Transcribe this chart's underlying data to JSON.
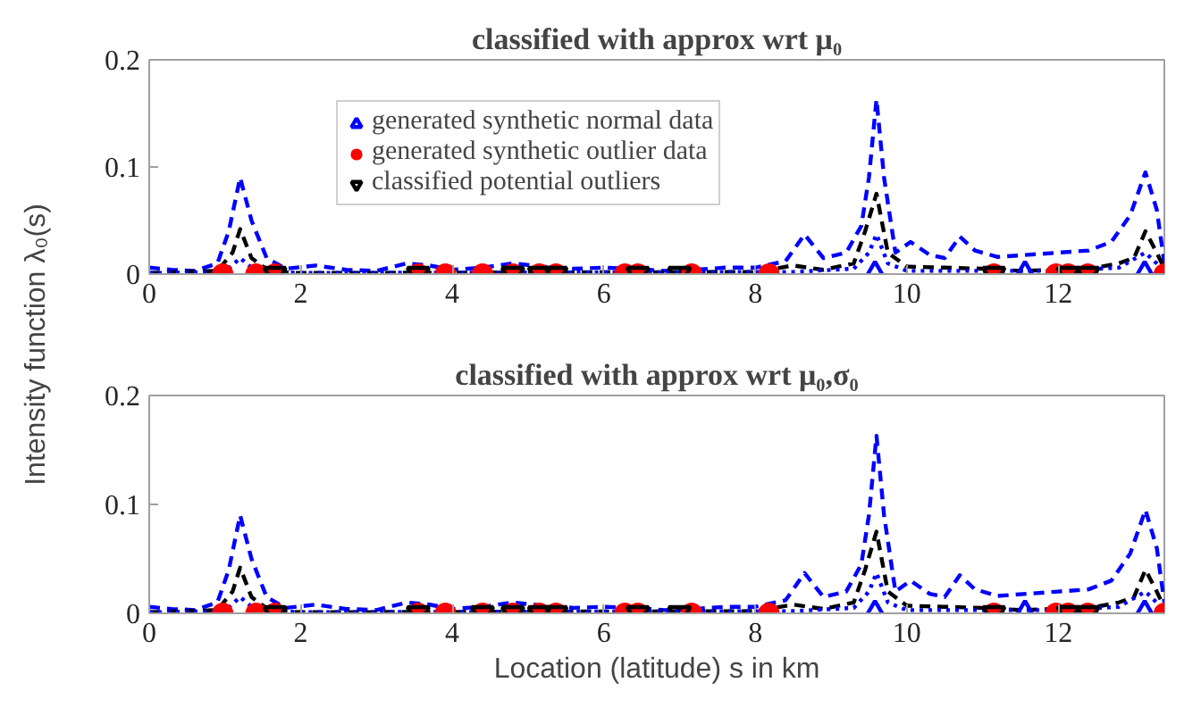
{
  "chart_data": [
    {
      "type": "line",
      "title": "classified with approx wrt μ₀",
      "ylabel": "Intensity function λ₀(s)",
      "xlim": [
        0,
        13.4
      ],
      "xticks": [
        0,
        2,
        4,
        6,
        8,
        10,
        12
      ],
      "ylim": [
        0,
        0.2
      ],
      "yticks": [
        0,
        0.1,
        0.2
      ],
      "grid": false,
      "legend": "top left",
      "series": [
        {
          "line_style": "dashed",
          "color": "#0000ff",
          "x": [
            0,
            0.3,
            0.6,
            0.9,
            1.05,
            1.2,
            1.35,
            1.55,
            1.8,
            2.2,
            2.6,
            3.0,
            3.4,
            3.7,
            4.0,
            4.4,
            4.8,
            5.2,
            5.6,
            6.0,
            6.4,
            6.8,
            7.2,
            7.6,
            8.0,
            8.4,
            8.65,
            8.9,
            9.2,
            9.4,
            9.5,
            9.6,
            9.7,
            9.85,
            10.05,
            10.3,
            10.5,
            10.7,
            10.9,
            11.2,
            11.6,
            12.0,
            12.4,
            12.7,
            12.95,
            13.15,
            13.3,
            13.4
          ],
          "values": [
            0.006,
            0.004,
            0.003,
            0.01,
            0.04,
            0.09,
            0.05,
            0.015,
            0.005,
            0.008,
            0.004,
            0.003,
            0.01,
            0.008,
            0.004,
            0.006,
            0.01,
            0.007,
            0.005,
            0.006,
            0.005,
            0.003,
            0.004,
            0.006,
            0.006,
            0.012,
            0.037,
            0.015,
            0.02,
            0.045,
            0.09,
            0.163,
            0.09,
            0.02,
            0.03,
            0.018,
            0.015,
            0.035,
            0.022,
            0.016,
            0.018,
            0.02,
            0.022,
            0.03,
            0.055,
            0.095,
            0.06,
            0.01
          ]
        },
        {
          "line_style": "dashed",
          "color": "#000000",
          "x": [
            0,
            0.9,
            1.1,
            1.2,
            1.35,
            1.6,
            2.0,
            8.0,
            8.5,
            8.9,
            9.3,
            9.45,
            9.6,
            9.75,
            10.0,
            10.5,
            11.0,
            11.5,
            12.0,
            12.5,
            12.8,
            13.0,
            13.15,
            13.3,
            13.4
          ],
          "values": [
            0.001,
            0.003,
            0.02,
            0.042,
            0.015,
            0.002,
            0.001,
            0.002,
            0.008,
            0.004,
            0.01,
            0.04,
            0.075,
            0.02,
            0.007,
            0.006,
            0.005,
            0.003,
            0.004,
            0.006,
            0.01,
            0.015,
            0.04,
            0.02,
            0.005
          ]
        },
        {
          "line_style": "dotted",
          "color": "#0000ff",
          "x": [
            0,
            1.0,
            1.2,
            1.4,
            2.0,
            8.5,
            9.3,
            9.5,
            9.6,
            9.75,
            10.0,
            12.0,
            12.8,
            13.15,
            13.4
          ],
          "values": [
            0.001,
            0.002,
            0.015,
            0.003,
            0.001,
            0.002,
            0.005,
            0.02,
            0.037,
            0.01,
            0.003,
            0.003,
            0.006,
            0.02,
            0.003
          ]
        },
        {
          "type": "scatter",
          "marker": "triangle",
          "name": "generated synthetic normal data",
          "color": "#0000ff",
          "x": [
            9.58,
            11.56,
            13.14
          ],
          "values": [
            0,
            0,
            0
          ]
        },
        {
          "type": "scatter",
          "marker": "circle",
          "name": "generated synthetic outlier data",
          "color": "#ff0000",
          "x": [
            0.97,
            1.41,
            1.66,
            3.55,
            3.91,
            4.4,
            4.8,
            5.15,
            5.37,
            6.28,
            6.45,
            7.16,
            8.18,
            11.15,
            11.97,
            12.13,
            12.39,
            13.4
          ],
          "values": [
            0,
            0,
            0,
            0,
            0,
            0,
            0,
            0,
            0,
            0,
            0,
            0,
            0,
            0,
            0,
            0,
            0,
            0
          ]
        },
        {
          "type": "scatter",
          "marker": "triangle",
          "name": "classified potential outliers",
          "color": "#000000",
          "x": [
            1.66,
            3.55,
            4.8,
            5.15,
            5.37,
            6.45,
            7.0,
            11.15,
            12.13,
            12.39
          ],
          "values": [
            0,
            0,
            0,
            0,
            0,
            0,
            0,
            0,
            0,
            0
          ]
        }
      ]
    },
    {
      "type": "line",
      "title": "classified with approx wrt μ₀,σ₀",
      "xlabel": "Location (latitude) s in km",
      "xlim": [
        0,
        13.4
      ],
      "xticks": [
        0,
        2,
        4,
        6,
        8,
        10,
        12
      ],
      "ylim": [
        0,
        0.2
      ],
      "yticks": [
        0,
        0.1,
        0.2
      ],
      "grid": false,
      "series": [
        {
          "line_style": "dashed",
          "color": "#0000ff",
          "x": [
            0,
            0.3,
            0.6,
            0.9,
            1.05,
            1.2,
            1.35,
            1.55,
            1.8,
            2.2,
            2.6,
            3.0,
            3.4,
            3.7,
            4.0,
            4.4,
            4.8,
            5.2,
            5.6,
            6.0,
            6.4,
            6.8,
            7.2,
            7.6,
            8.0,
            8.4,
            8.65,
            8.9,
            9.2,
            9.4,
            9.5,
            9.6,
            9.7,
            9.85,
            10.05,
            10.3,
            10.5,
            10.7,
            10.9,
            11.2,
            11.6,
            12.0,
            12.4,
            12.7,
            12.95,
            13.15,
            13.3,
            13.4
          ],
          "values": [
            0.006,
            0.004,
            0.003,
            0.01,
            0.04,
            0.09,
            0.05,
            0.015,
            0.005,
            0.008,
            0.004,
            0.003,
            0.01,
            0.008,
            0.004,
            0.006,
            0.01,
            0.007,
            0.005,
            0.006,
            0.005,
            0.003,
            0.004,
            0.006,
            0.006,
            0.012,
            0.037,
            0.015,
            0.02,
            0.045,
            0.09,
            0.163,
            0.09,
            0.02,
            0.03,
            0.018,
            0.015,
            0.035,
            0.022,
            0.016,
            0.018,
            0.02,
            0.022,
            0.03,
            0.055,
            0.095,
            0.06,
            0.01
          ]
        },
        {
          "line_style": "dashed",
          "color": "#000000",
          "x": [
            0,
            0.9,
            1.1,
            1.2,
            1.35,
            1.6,
            2.0,
            8.0,
            8.5,
            8.9,
            9.3,
            9.45,
            9.6,
            9.75,
            10.0,
            10.5,
            11.0,
            11.5,
            12.0,
            12.5,
            12.8,
            13.0,
            13.15,
            13.3,
            13.4
          ],
          "values": [
            0.001,
            0.003,
            0.02,
            0.042,
            0.015,
            0.002,
            0.001,
            0.002,
            0.008,
            0.004,
            0.01,
            0.04,
            0.075,
            0.02,
            0.007,
            0.006,
            0.005,
            0.003,
            0.004,
            0.006,
            0.01,
            0.015,
            0.04,
            0.02,
            0.005
          ]
        },
        {
          "line_style": "dotted",
          "color": "#0000ff",
          "x": [
            0,
            1.0,
            1.2,
            1.4,
            2.0,
            8.5,
            9.3,
            9.5,
            9.6,
            9.75,
            10.0,
            12.0,
            12.8,
            13.15,
            13.4
          ],
          "values": [
            0.001,
            0.002,
            0.015,
            0.003,
            0.001,
            0.002,
            0.005,
            0.02,
            0.037,
            0.01,
            0.003,
            0.003,
            0.006,
            0.02,
            0.003
          ]
        },
        {
          "type": "scatter",
          "marker": "triangle",
          "color": "#0000ff",
          "x": [
            9.58,
            11.56,
            13.14
          ],
          "values": [
            0,
            0,
            0
          ]
        },
        {
          "type": "scatter",
          "marker": "circle",
          "color": "#ff0000",
          "x": [
            0.97,
            1.41,
            1.66,
            3.55,
            3.91,
            4.4,
            4.8,
            5.15,
            5.37,
            6.28,
            6.45,
            7.16,
            8.18,
            11.15,
            11.97,
            12.13,
            12.39,
            13.4
          ],
          "values": [
            0,
            0,
            0,
            0,
            0,
            0,
            0,
            0,
            0,
            0,
            0,
            0,
            0,
            0,
            0,
            0,
            0,
            0
          ]
        },
        {
          "type": "scatter",
          "marker": "triangle",
          "color": "#000000",
          "x": [
            1.66,
            3.55,
            4.4,
            4.8,
            5.15,
            5.37,
            6.45,
            7.0,
            11.15,
            12.13,
            12.39
          ],
          "values": [
            0,
            0,
            0,
            0,
            0,
            0,
            0,
            0,
            0,
            0,
            0
          ]
        }
      ]
    }
  ]
}
